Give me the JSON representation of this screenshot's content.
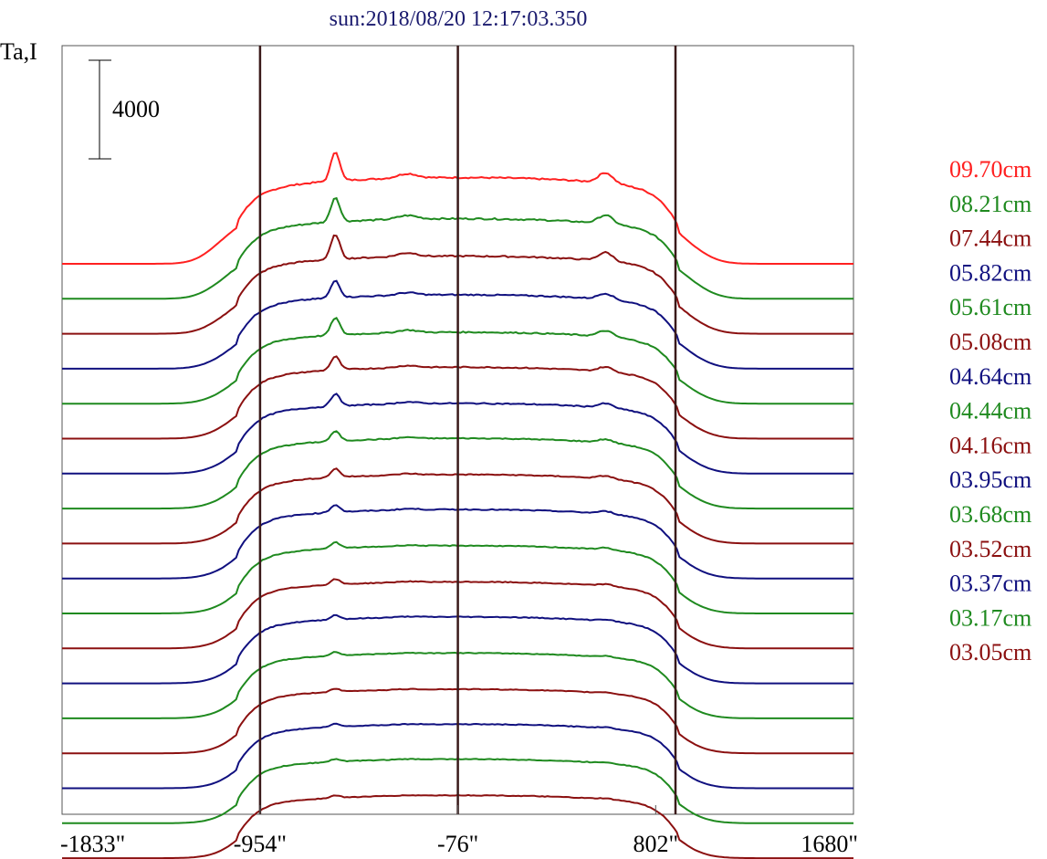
{
  "chart_data": {
    "type": "line",
    "title": "sun:2018/08/20 12:17:03.350",
    "ylabel": "Ta,I",
    "scale_bar_label": "4000",
    "scale_bar_value": 4000,
    "xlim": [
      -1833,
      1680
    ],
    "x_ticks": [
      {
        "value": -1833,
        "label": "-1833\""
      },
      {
        "value": -954,
        "label": "-954\""
      },
      {
        "value": -76,
        "label": "-76\""
      },
      {
        "value": 802,
        "label": "802\""
      },
      {
        "value": 1680,
        "label": "1680\""
      }
    ],
    "vertical_markers": [
      -954,
      -76,
      890
    ],
    "series": [
      {
        "name": "09.70cm",
        "color": "#ff2020",
        "peak": 3500,
        "bump": 1200,
        "limbA": 1500,
        "limbB": 900,
        "noise": 60
      },
      {
        "name": "08.21cm",
        "color": "#1f8a1f",
        "peak": 3250,
        "bump": 1000,
        "limbA": 1100,
        "limbB": 900,
        "noise": 60
      },
      {
        "name": "07.44cm",
        "color": "#8b1010",
        "peak": 3150,
        "bump": 1000,
        "limbA": 900,
        "limbB": 750,
        "noise": 55
      },
      {
        "name": "05.82cm",
        "color": "#10107f",
        "peak": 3000,
        "bump": 700,
        "limbA": 600,
        "limbB": 650,
        "noise": 50
      },
      {
        "name": "05.61cm",
        "color": "#1f8a1f",
        "peak": 2900,
        "bump": 700,
        "limbA": 500,
        "limbB": 600,
        "noise": 50
      },
      {
        "name": "05.08cm",
        "color": "#8b1010",
        "peak": 2900,
        "bump": 550,
        "limbA": 450,
        "limbB": 550,
        "noise": 45
      },
      {
        "name": "04.64cm",
        "color": "#10107f",
        "peak": 2850,
        "bump": 500,
        "limbA": 400,
        "limbB": 500,
        "noise": 45
      },
      {
        "name": "04.44cm",
        "color": "#1f8a1f",
        "peak": 2850,
        "bump": 400,
        "limbA": 350,
        "limbB": 450,
        "noise": 40
      },
      {
        "name": "04.16cm",
        "color": "#8b1010",
        "peak": 2800,
        "bump": 350,
        "limbA": 300,
        "limbB": 400,
        "noise": 40
      },
      {
        "name": "03.95cm",
        "color": "#10107f",
        "peak": 2800,
        "bump": 300,
        "limbA": 300,
        "limbB": 400,
        "noise": 40
      },
      {
        "name": "03.68cm",
        "color": "#1f8a1f",
        "peak": 2750,
        "bump": 250,
        "limbA": 250,
        "limbB": 350,
        "noise": 35
      },
      {
        "name": "03.52cm",
        "color": "#8b1010",
        "peak": 2700,
        "bump": 220,
        "limbA": 250,
        "limbB": 300,
        "noise": 35
      },
      {
        "name": "03.37cm",
        "color": "#10107f",
        "peak": 2700,
        "bump": 180,
        "limbA": 200,
        "limbB": 300,
        "noise": 35
      },
      {
        "name": "03.17cm",
        "color": "#1f8a1f",
        "peak": 2650,
        "bump": 150,
        "limbA": 200,
        "limbB": 250,
        "noise": 30
      },
      {
        "name": "03.05cm",
        "color": "#8b1010",
        "peak": 2600,
        "bump": 120,
        "limbA": 150,
        "limbB": 250,
        "noise": 30
      },
      {
        "name": "",
        "color": "#10107f",
        "peak": 2600,
        "bump": 120,
        "limbA": 150,
        "limbB": 250,
        "noise": 30
      },
      {
        "name": "",
        "color": "#1f8a1f",
        "peak": 2600,
        "bump": 110,
        "limbA": 150,
        "limbB": 250,
        "noise": 30
      },
      {
        "name": "",
        "color": "#8b1010",
        "peak": 2550,
        "bump": 100,
        "limbA": 120,
        "limbB": 200,
        "noise": 30
      }
    ],
    "grid": false,
    "legend": "right"
  }
}
